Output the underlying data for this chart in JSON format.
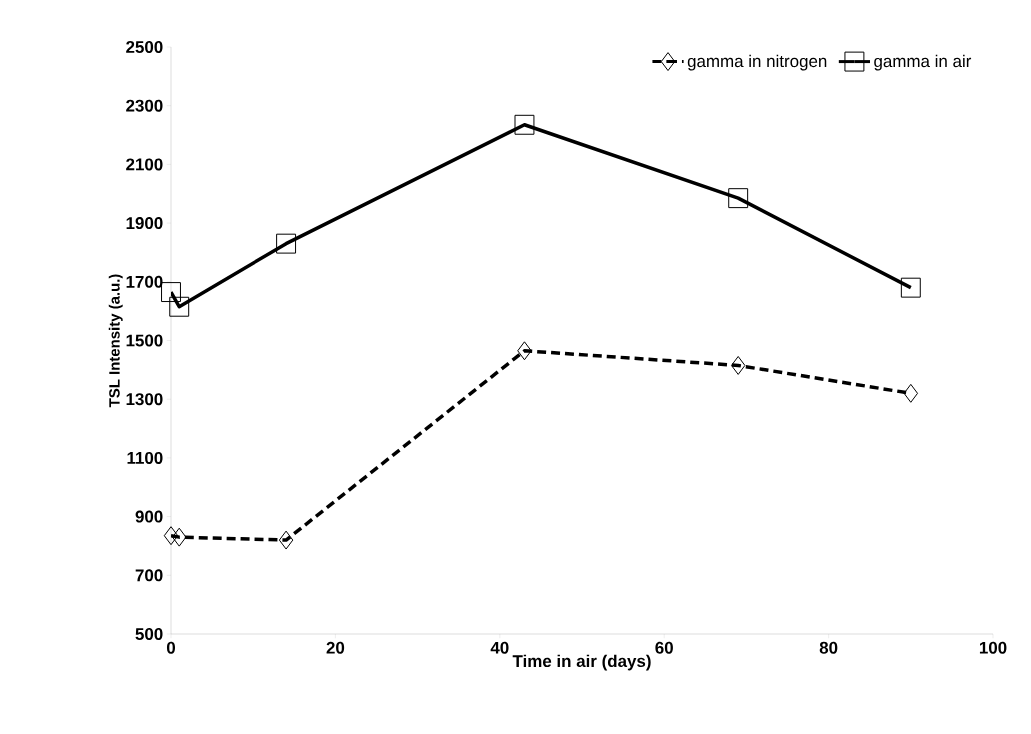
{
  "chart_data": {
    "type": "line",
    "xlabel": "Time in air (days)",
    "ylabel": "TSL Intensity (a.u.)",
    "xlim": [
      0,
      100
    ],
    "xticks": [
      0,
      20,
      40,
      60,
      80,
      100
    ],
    "ylim": [
      500,
      2500
    ],
    "yticks": [
      500,
      700,
      900,
      1100,
      1300,
      1500,
      1700,
      1900,
      2100,
      2300,
      2500
    ],
    "grid": false,
    "legend": "top",
    "series": [
      {
        "name": "gamma in nitrogen",
        "color": "#000000",
        "line_style": "dashed",
        "marker": "diamond",
        "x": [
          0,
          1,
          14,
          43,
          69,
          90
        ],
        "values": [
          835,
          830,
          820,
          1465,
          1415,
          1320
        ]
      },
      {
        "name": "gamma in air",
        "color": "#000000",
        "line_style": "solid",
        "marker": "square",
        "x": [
          0,
          1,
          14,
          43,
          69,
          90
        ],
        "values": [
          1665,
          1615,
          1830,
          2235,
          1985,
          1680
        ]
      }
    ]
  }
}
